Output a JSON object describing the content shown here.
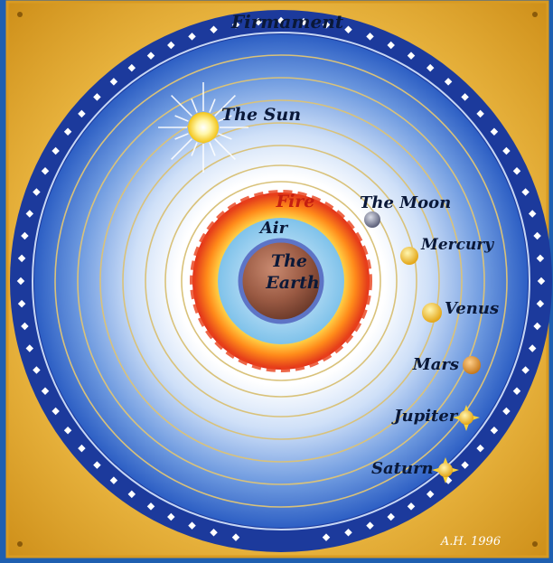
{
  "diagram": {
    "firmament_label": "Firmament",
    "sun_label": "The Sun",
    "fire_label": "Fire",
    "air_label": "Air",
    "earth_label_line1": "The",
    "earth_label_line2": "Earth",
    "moon_label": "The Moon",
    "mercury_label": "Mercury",
    "venus_label": "Venus",
    "mars_label": "Mars",
    "jupiter_label": "Jupiter",
    "saturn_label": "Saturn",
    "signature": "A.H. 1996"
  },
  "colors": {
    "frame_gold": "#e9b43a",
    "firmament_blue": "#1c3a9c",
    "sky_blue": "#2f63c8",
    "fire": "#e8401a",
    "earth": "#9a5a43"
  }
}
